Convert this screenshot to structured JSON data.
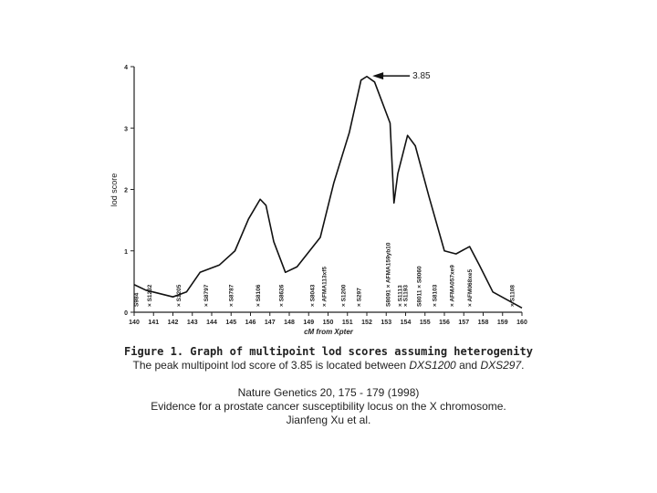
{
  "chart_data": {
    "type": "line",
    "xlabel": "cM from Xpter",
    "ylabel": "lod score",
    "x": [
      140,
      140.6,
      142,
      142.7,
      143.4,
      144.4,
      145.2,
      145.9,
      146.5,
      146.8,
      147.2,
      147.8,
      148.4,
      149.6,
      150.3,
      151.1,
      151.7,
      152,
      152.4,
      153.2,
      153.4,
      153.6,
      154.1,
      154.5,
      155.2,
      156,
      156.6,
      157.3,
      157.8,
      158.5,
      160
    ],
    "series": [
      {
        "name": "lod score",
        "color": "#111111",
        "values": [
          0.45,
          0.36,
          0.25,
          0.33,
          0.65,
          0.77,
          1.0,
          1.52,
          1.84,
          1.74,
          1.15,
          0.65,
          0.74,
          1.22,
          2.11,
          2.93,
          3.78,
          3.84,
          3.75,
          3.08,
          1.78,
          2.26,
          2.88,
          2.71,
          1.89,
          1.0,
          0.95,
          1.07,
          0.77,
          0.33,
          0.07
        ]
      }
    ],
    "xlim": [
      140,
      160
    ],
    "xticks": [
      140,
      141,
      142,
      143,
      144,
      145,
      146,
      147,
      148,
      149,
      150,
      151,
      152,
      153,
      154,
      155,
      156,
      157,
      158,
      159,
      160
    ],
    "ylim": [
      0,
      4
    ],
    "yticks": [
      0,
      1,
      2,
      3,
      4
    ],
    "annotations": [
      {
        "text": "3.85",
        "x": 152.1,
        "y": 3.85
      }
    ],
    "markers": [
      {
        "text": "S984",
        "x": 140.2
      },
      {
        "text": "× S1232",
        "x": 140.9
      },
      {
        "text": "× S1205",
        "x": 142.4
      },
      {
        "text": "× S8797",
        "x": 143.8
      },
      {
        "text": "× S8787",
        "x": 145.1
      },
      {
        "text": "× S8106",
        "x": 146.5
      },
      {
        "text": "× S8626",
        "x": 147.7
      },
      {
        "text": "× S8043",
        "x": 149.3
      },
      {
        "text": "× AFMA113xf5",
        "x": 149.9
      },
      {
        "text": "× S1200",
        "x": 150.9
      },
      {
        "text": "× S297",
        "x": 151.7
      },
      {
        "text": "S8091 × AFMA159yb10",
        "x": 153.2
      },
      {
        "text": "× S1113",
        "x": 153.8
      },
      {
        "text": "× S1193",
        "x": 154.1
      },
      {
        "text": "S8011 × S8060",
        "x": 154.8
      },
      {
        "text": "× S8103",
        "x": 155.6
      },
      {
        "text": "× AFMA057xe9",
        "x": 156.5
      },
      {
        "text": "× AFM068xe5",
        "x": 157.4
      },
      {
        "text": "× S1108",
        "x": 159.6
      }
    ]
  },
  "caption": {
    "title": "Figure 1. Graph of multipoint lod scores assuming heterogenity",
    "text_before": "The peak multipoint lod score of 3.85 is located between ",
    "marker1": "DXS1200",
    "text_mid": " and ",
    "marker2": "DXS297",
    "text_end": ".",
    "journal": "Nature Genetics  20, 175 - 179 (1998)",
    "article": "Evidence for a prostate cancer susceptibility locus on the X chromosome.",
    "authors": "Jianfeng Xu et al."
  }
}
